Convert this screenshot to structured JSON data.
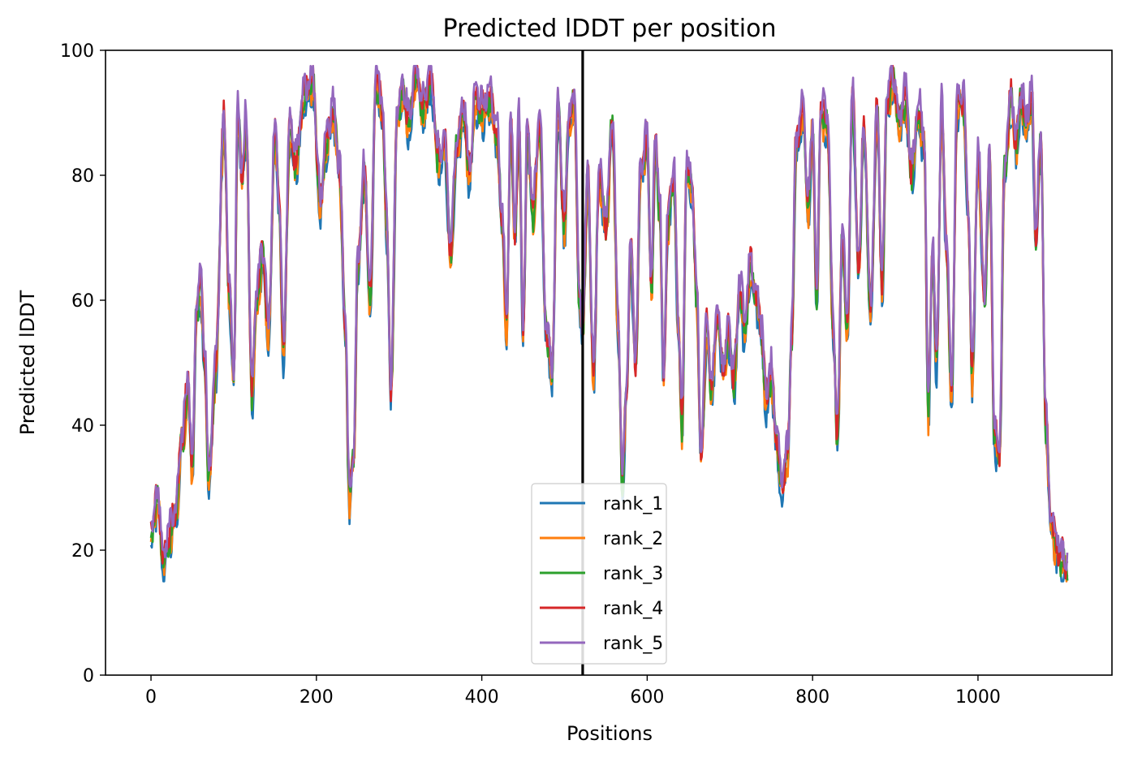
{
  "chart_data": {
    "type": "line",
    "title": "Predicted lDDT per position",
    "xlabel": "Positions",
    "ylabel": "Predicted lDDT",
    "xlim": [
      -55,
      1162
    ],
    "ylim": [
      0,
      100
    ],
    "xticks": [
      0,
      200,
      400,
      600,
      800,
      1000
    ],
    "yticks": [
      0,
      20,
      40,
      60,
      80,
      100
    ],
    "grid": false,
    "legend_position": "lower center",
    "vline_x": 522,
    "vline_color": "#000000",
    "series": [
      {
        "name": "rank_1",
        "color": "#1f77b4"
      },
      {
        "name": "rank_2",
        "color": "#ff7f0e"
      },
      {
        "name": "rank_3",
        "color": "#2ca02c"
      },
      {
        "name": "rank_4",
        "color": "#d62728"
      },
      {
        "name": "rank_5",
        "color": "#9467bd"
      }
    ],
    "anchors": [
      [
        0,
        22
      ],
      [
        8,
        28
      ],
      [
        15,
        18
      ],
      [
        22,
        22
      ],
      [
        30,
        26
      ],
      [
        38,
        38
      ],
      [
        45,
        46
      ],
      [
        50,
        33
      ],
      [
        55,
        58
      ],
      [
        60,
        62
      ],
      [
        65,
        50
      ],
      [
        70,
        31
      ],
      [
        78,
        48
      ],
      [
        88,
        88
      ],
      [
        95,
        60
      ],
      [
        100,
        47
      ],
      [
        105,
        90
      ],
      [
        110,
        80
      ],
      [
        115,
        88
      ],
      [
        122,
        45
      ],
      [
        128,
        60
      ],
      [
        135,
        67
      ],
      [
        142,
        55
      ],
      [
        150,
        87
      ],
      [
        155,
        75
      ],
      [
        160,
        52
      ],
      [
        168,
        87
      ],
      [
        175,
        82
      ],
      [
        185,
        92
      ],
      [
        195,
        95
      ],
      [
        205,
        75
      ],
      [
        212,
        85
      ],
      [
        220,
        90
      ],
      [
        228,
        80
      ],
      [
        235,
        55
      ],
      [
        240,
        28
      ],
      [
        245,
        35
      ],
      [
        250,
        65
      ],
      [
        258,
        80
      ],
      [
        265,
        60
      ],
      [
        272,
        95
      ],
      [
        280,
        90
      ],
      [
        285,
        72
      ],
      [
        290,
        45
      ],
      [
        298,
        90
      ],
      [
        305,
        93
      ],
      [
        312,
        88
      ],
      [
        320,
        96
      ],
      [
        330,
        90
      ],
      [
        338,
        95
      ],
      [
        348,
        82
      ],
      [
        355,
        85
      ],
      [
        362,
        68
      ],
      [
        370,
        85
      ],
      [
        378,
        90
      ],
      [
        385,
        80
      ],
      [
        392,
        92
      ],
      [
        400,
        90
      ],
      [
        410,
        92
      ],
      [
        418,
        86
      ],
      [
        425,
        72
      ],
      [
        430,
        55
      ],
      [
        435,
        88
      ],
      [
        440,
        70
      ],
      [
        445,
        88
      ],
      [
        450,
        55
      ],
      [
        455,
        86
      ],
      [
        462,
        74
      ],
      [
        470,
        88
      ],
      [
        478,
        55
      ],
      [
        485,
        48
      ],
      [
        492,
        90
      ],
      [
        500,
        72
      ],
      [
        505,
        88
      ],
      [
        512,
        92
      ],
      [
        518,
        60
      ],
      [
        522,
        55
      ],
      [
        528,
        80
      ],
      [
        535,
        48
      ],
      [
        542,
        80
      ],
      [
        550,
        72
      ],
      [
        558,
        88
      ],
      [
        565,
        55
      ],
      [
        570,
        30
      ],
      [
        575,
        45
      ],
      [
        580,
        68
      ],
      [
        586,
        50
      ],
      [
        592,
        80
      ],
      [
        600,
        85
      ],
      [
        605,
        62
      ],
      [
        610,
        85
      ],
      [
        615,
        75
      ],
      [
        620,
        48
      ],
      [
        625,
        72
      ],
      [
        632,
        80
      ],
      [
        638,
        55
      ],
      [
        642,
        40
      ],
      [
        648,
        82
      ],
      [
        654,
        78
      ],
      [
        660,
        60
      ],
      [
        665,
        35
      ],
      [
        672,
        55
      ],
      [
        678,
        45
      ],
      [
        685,
        58
      ],
      [
        692,
        48
      ],
      [
        698,
        55
      ],
      [
        705,
        47
      ],
      [
        712,
        62
      ],
      [
        718,
        55
      ],
      [
        725,
        65
      ],
      [
        732,
        60
      ],
      [
        738,
        55
      ],
      [
        744,
        44
      ],
      [
        750,
        48
      ],
      [
        756,
        38
      ],
      [
        762,
        30
      ],
      [
        770,
        35
      ],
      [
        775,
        55
      ],
      [
        780,
        85
      ],
      [
        788,
        90
      ],
      [
        795,
        75
      ],
      [
        800,
        88
      ],
      [
        805,
        60
      ],
      [
        810,
        90
      ],
      [
        818,
        88
      ],
      [
        825,
        55
      ],
      [
        830,
        38
      ],
      [
        836,
        70
      ],
      [
        842,
        55
      ],
      [
        848,
        92
      ],
      [
        856,
        65
      ],
      [
        862,
        88
      ],
      [
        870,
        58
      ],
      [
        878,
        90
      ],
      [
        884,
        62
      ],
      [
        890,
        92
      ],
      [
        898,
        95
      ],
      [
        905,
        88
      ],
      [
        912,
        92
      ],
      [
        920,
        80
      ],
      [
        928,
        90
      ],
      [
        935,
        85
      ],
      [
        940,
        42
      ],
      [
        945,
        68
      ],
      [
        950,
        50
      ],
      [
        956,
        90
      ],
      [
        962,
        68
      ],
      [
        968,
        45
      ],
      [
        975,
        92
      ],
      [
        982,
        92
      ],
      [
        988,
        75
      ],
      [
        993,
        48
      ],
      [
        1000,
        82
      ],
      [
        1008,
        60
      ],
      [
        1014,
        82
      ],
      [
        1020,
        38
      ],
      [
        1026,
        35
      ],
      [
        1032,
        80
      ],
      [
        1040,
        92
      ],
      [
        1046,
        85
      ],
      [
        1052,
        92
      ],
      [
        1058,
        88
      ],
      [
        1065,
        92
      ],
      [
        1070,
        70
      ],
      [
        1076,
        85
      ],
      [
        1082,
        40
      ],
      [
        1088,
        25
      ],
      [
        1095,
        20
      ],
      [
        1102,
        18
      ],
      [
        1108,
        17
      ]
    ]
  }
}
